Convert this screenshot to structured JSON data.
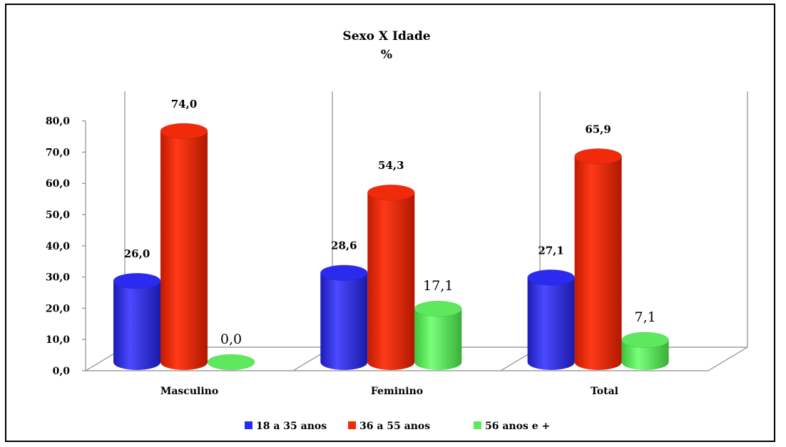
{
  "chart_data": {
    "type": "bar",
    "title": "Sexo X Idade",
    "subtitle": "%",
    "categories": [
      "Masculino",
      "Feminino",
      "Total"
    ],
    "series": [
      {
        "name": "18 a 35 anos",
        "values": [
          26.0,
          28.6,
          27.1
        ],
        "labels": [
          "26,0",
          "28,6",
          "27,1"
        ],
        "color": "#2B2BF0"
      },
      {
        "name": "36 a 55 anos",
        "values": [
          74.0,
          54.3,
          65.9
        ],
        "labels": [
          "74,0",
          "54,3",
          "65,9"
        ],
        "color": "#F02A0A"
      },
      {
        "name": "56 anos e +",
        "values": [
          0.0,
          17.1,
          7.1
        ],
        "labels": [
          "0,0",
          "17,1",
          "7,1"
        ],
        "color": "#5EE85E"
      }
    ],
    "ylim": [
      0,
      80
    ],
    "yticks": [
      "0,0",
      "10,0",
      "20,0",
      "30,0",
      "40,0",
      "50,0",
      "60,0",
      "70,0",
      "80,0"
    ],
    "xlabel": "",
    "ylabel": "",
    "legend_position": "bottom",
    "grid": false,
    "style": "3d-cylinder"
  }
}
